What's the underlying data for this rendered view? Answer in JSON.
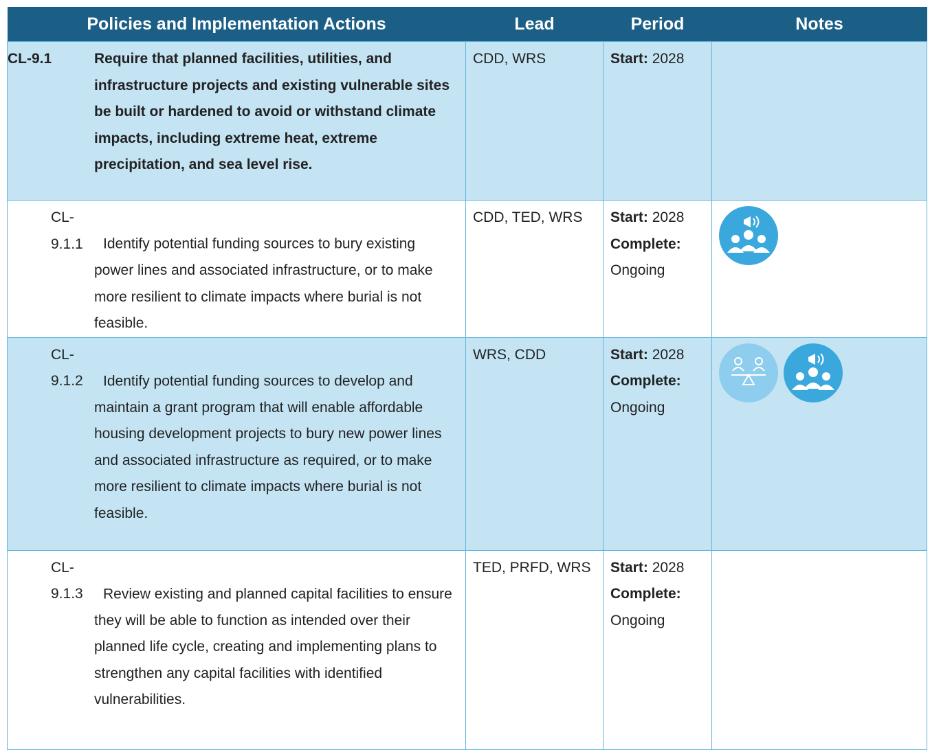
{
  "table": {
    "header": [
      "Policies and Implementation Actions",
      "Lead",
      "Period",
      "Notes"
    ],
    "rows": [
      {
        "id": "CL-9.1",
        "text": "Require that planned facilities, utilities, and infrastructure projects and existing vulnerable sites be built or hardened to avoid or withstand climate impacts, including extreme heat, extreme precipitation, and sea level rise.",
        "lead": "CDD, WRS",
        "start_label": "Start:",
        "start": 2028
      },
      {
        "id": "CL-9.1.1",
        "text": "Identify potential funding sources to bury existing power lines and associated infrastructure, or to make more resilient to climate impacts where burial is not feasible.",
        "lead": "CDD, TED, WRS",
        "start_label": "Start:",
        "start": 2028,
        "complete_label": "Complete:",
        "complete": "Ongoing"
      },
      {
        "id": "CL-9.1.2",
        "text": "Identify potential funding sources to develop and maintain a grant program that will enable affordable housing development projects to bury new power lines and associated infrastructure as required, or to make more resilient to climate impacts where burial is not feasible.",
        "lead": "WRS, CDD",
        "start_label": "Start:",
        "start": 2028,
        "complete_label": "Complete:",
        "complete": "Ongoing"
      },
      {
        "id": "CL-9.1.3",
        "text": "Review existing and planned capital facilities to ensure they will be able to function as intended over their planned life cycle, creating and implementing plans to strengthen any capital facilities with identified vulnerabilities.",
        "lead": "TED, PRFD, WRS",
        "start_label": "Start:",
        "start": 2028,
        "complete_label": "Complete:",
        "complete": "Ongoing"
      }
    ]
  }
}
